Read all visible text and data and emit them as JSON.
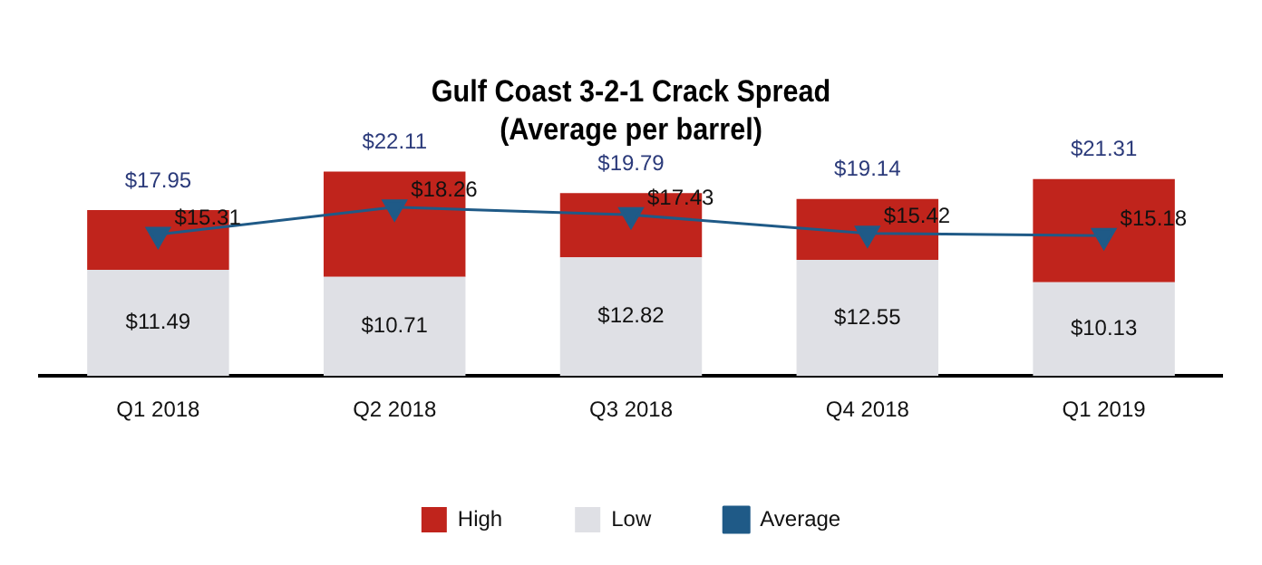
{
  "chart_data": {
    "type": "bar",
    "title": "Gulf Coast 3-2-1 Crack Spread\n(Average per barrel)",
    "categories": [
      "Q1 2018",
      "Q2 2018",
      "Q3 2018",
      "Q4 2018",
      "Q1 2019"
    ],
    "stacked": true,
    "legend": "bottom",
    "grid": false,
    "tick_labels": "x",
    "series": [
      {
        "name": "Low",
        "color": "#dfe0e5",
        "values": [
          11.49,
          10.71,
          12.82,
          12.55,
          10.13
        ],
        "value_labels": [
          "$11.49",
          "$10.71",
          "$12.82",
          "$12.55",
          "$10.13"
        ]
      },
      {
        "name": "High",
        "color": "#c0241c",
        "values": [
          6.46,
          11.4,
          6.97,
          6.59,
          11.18
        ]
      },
      {
        "name": "Average",
        "type": "line",
        "color": "#1f5a87",
        "marker": "triangle",
        "line_style": "solid",
        "values": [
          15.31,
          18.26,
          17.43,
          15.42,
          15.18
        ],
        "value_labels": [
          "$15.31",
          "$18.26",
          "$17.43",
          "$15.42",
          "$15.18"
        ]
      }
    ],
    "totals": [
      "$17.95",
      "$22.11",
      "$19.79",
      "$19.14",
      "$21.31"
    ]
  }
}
